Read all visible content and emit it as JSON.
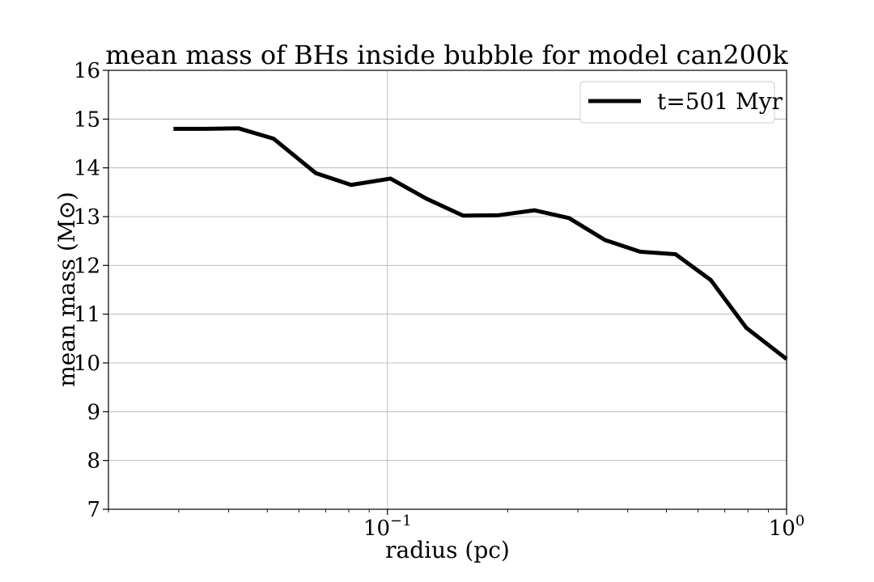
{
  "chart_data": {
    "type": "line",
    "title": "mean mass of BHs inside bubble for model can200k",
    "xlabel": "radius (pc)",
    "ylabel": "mean mass (M⊙)",
    "xscale": "log",
    "xlim": [
      0.02,
      1.0
    ],
    "ylim": [
      7,
      16
    ],
    "x_major_ticks": [
      {
        "value": 0.1,
        "base": "10",
        "exp": "−1"
      },
      {
        "value": 1.0,
        "base": "10",
        "exp": "0"
      }
    ],
    "yticks": [
      7,
      8,
      9,
      10,
      11,
      12,
      13,
      14,
      15,
      16
    ],
    "grid": true,
    "legend_position": "top-right",
    "series": [
      {
        "name": "t=501 Myr",
        "color": "#000000",
        "x": [
          0.0291,
          0.0347,
          0.0424,
          0.0518,
          0.0662,
          0.0811,
          0.1018,
          0.1251,
          0.1547,
          0.1902,
          0.2337,
          0.2851,
          0.3509,
          0.4303,
          0.5269,
          0.6457,
          0.7925,
          1.0
        ],
        "y": [
          14.8,
          14.8,
          14.81,
          14.6,
          13.89,
          13.65,
          13.78,
          13.37,
          13.02,
          13.03,
          13.13,
          12.97,
          12.52,
          12.28,
          12.23,
          11.7,
          10.72,
          10.08
        ]
      }
    ]
  }
}
